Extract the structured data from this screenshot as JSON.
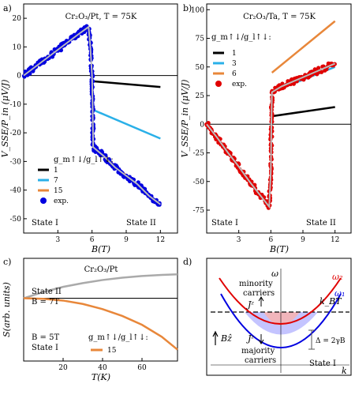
{
  "chart_data": [
    {
      "panel": "a)",
      "type": "scatter",
      "title": "Cr₂O₃/Pt, T = 75K",
      "xlabel": "B(T)",
      "ylabel": "V_SSE/P_in (μV/J)",
      "xlim": [
        0,
        13.5
      ],
      "ylim": [
        -55,
        25
      ],
      "xticks": [
        "3",
        "6",
        "9",
        "12"
      ],
      "yticks": [
        "20",
        "10",
        "0",
        "-10",
        "-20",
        "-30",
        "-40",
        "-50"
      ],
      "legend_title": "g_m↑↓/g_l↑↓:",
      "legend": [
        "1",
        "7",
        "15",
        "exp."
      ],
      "state_labels": [
        "State I",
        "State II"
      ],
      "series": [
        {
          "name": "1",
          "color": "#000000",
          "x": [
            6.1,
            12
          ],
          "y": [
            -2,
            -4
          ]
        },
        {
          "name": "7",
          "color": "#2ab0e8",
          "x": [
            6.1,
            12
          ],
          "y": [
            -12,
            -22
          ]
        },
        {
          "name": "15",
          "color": "#e8873a",
          "x": [
            6.1,
            12
          ],
          "y": [
            -25,
            -45
          ]
        },
        {
          "name": "exp.",
          "color": "#0000e0",
          "x": [
            0,
            1,
            2,
            3,
            4,
            5,
            5.7,
            5.85,
            6.0,
            6.05,
            6.1,
            7,
            8,
            9,
            10,
            11,
            12
          ],
          "y": [
            0,
            3,
            6,
            9,
            12,
            15,
            17,
            10,
            0,
            -10,
            -25,
            -28,
            -32,
            -35,
            -38,
            -42,
            -45
          ]
        }
      ]
    },
    {
      "panel": "b)",
      "type": "scatter",
      "title": "Cr₂O₃/Ta, T = 75K",
      "xlabel": "B(T)",
      "ylabel": "V_SSE/P_in (μV/J)",
      "xlim": [
        0,
        13.5
      ],
      "ylim": [
        -95,
        105
      ],
      "xticks": [
        "3",
        "6",
        "9",
        "12"
      ],
      "yticks": [
        "100",
        "75",
        "50",
        "25",
        "0",
        "-25",
        "-50",
        "-75"
      ],
      "legend_title": "g_m↑↓/g_l↑↓:",
      "legend": [
        "1",
        "3",
        "6",
        "exp."
      ],
      "state_labels": [
        "State I",
        "State II"
      ],
      "series": [
        {
          "name": "1",
          "color": "#000000",
          "x": [
            6.1,
            12
          ],
          "y": [
            7,
            15
          ]
        },
        {
          "name": "3",
          "color": "#2ab0e8",
          "x": [
            6.1,
            12
          ],
          "y": [
            28,
            50
          ]
        },
        {
          "name": "6",
          "color": "#e8873a",
          "x": [
            6.1,
            12
          ],
          "y": [
            45,
            90
          ]
        },
        {
          "name": "exp.",
          "color": "#e00000",
          "x": [
            0,
            1,
            2,
            3,
            4,
            5,
            5.85,
            6.0,
            6.05,
            6.1,
            7,
            8,
            9,
            10,
            11,
            12
          ],
          "y": [
            0,
            -12,
            -25,
            -37,
            -50,
            -62,
            -72,
            -40,
            0,
            28,
            33,
            37,
            41,
            45,
            49,
            53
          ]
        }
      ]
    },
    {
      "panel": "c)",
      "type": "line",
      "title": "Cr₂O₃/Pt",
      "xlabel": "T(K)",
      "ylabel": "S(arb. units)",
      "xlim": [
        0,
        78
      ],
      "ylim": [
        -22,
        14
      ],
      "xticks": [
        "20",
        "40",
        "60"
      ],
      "legend_title": "g_m↑↓/g_l↑↓:",
      "legend": [
        "15"
      ],
      "state_labels": [
        "State II",
        "B = 7T",
        "B = 5T",
        "State I"
      ],
      "series": [
        {
          "name": "State II, B = 7T",
          "color": "#aaaaaa",
          "x": [
            0,
            10,
            20,
            30,
            40,
            50,
            60,
            70,
            78
          ],
          "y": [
            0,
            2.2,
            4,
            5.3,
            6.4,
            7.2,
            7.8,
            8.2,
            8.4
          ]
        },
        {
          "name": "15",
          "color": "#e8873a",
          "x": [
            0,
            10,
            20,
            30,
            40,
            50,
            60,
            70,
            78
          ],
          "y": [
            0,
            -0.2,
            -0.8,
            -2,
            -3.8,
            -6.2,
            -9.3,
            -13.5,
            -18
          ]
        }
      ]
    }
  ],
  "diagram": {
    "panel": "d)",
    "omega_axis": "ω",
    "k_axis": "k",
    "omega2": "ω₂",
    "omega1": "ω₁",
    "minority": "minority",
    "minority2": "carriers",
    "majority": "majority",
    "majority2": "carriers",
    "jz_up": "Jᶻ",
    "jz_down": "Jᶻ",
    "kbt": "k_BT",
    "gap": "Δ = 2γB",
    "bfield": "Bẑ",
    "state": "State I",
    "colors": {
      "omega2": "#e00000",
      "omega1": "#0000e0",
      "fill_red": "#f6b4b4",
      "fill_blue": "#b0b0ff"
    }
  }
}
